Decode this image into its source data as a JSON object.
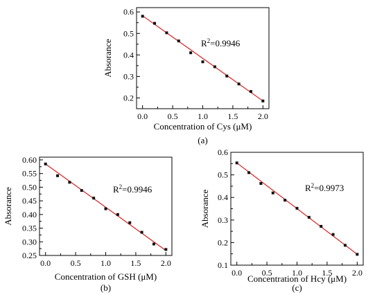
{
  "chart_data": [
    {
      "type": "scatter",
      "caption": "(a)",
      "xlabel": "Concentration of Cys (μM)",
      "ylabel": "Absorance",
      "annotation_base": "R",
      "annotation_sup": "2",
      "annotation_value": "=0.9946",
      "xlim": [
        -0.1,
        2.1
      ],
      "ylim": [
        0.15,
        0.62
      ],
      "xticks": [
        0.0,
        0.5,
        1.0,
        1.5,
        2.0
      ],
      "xtick_labels": [
        "0.0",
        "0.5",
        "1.0",
        "1.5",
        "2.0"
      ],
      "yticks": [
        0.2,
        0.3,
        0.4,
        0.5,
        0.6
      ],
      "ytick_labels": [
        "0.2",
        "0.3",
        "0.4",
        "0.5",
        "0.6"
      ],
      "x": [
        0.0,
        0.2,
        0.4,
        0.6,
        0.8,
        1.0,
        1.2,
        1.4,
        1.6,
        1.8,
        2.0
      ],
      "y": [
        0.58,
        0.547,
        0.503,
        0.465,
        0.41,
        0.368,
        0.345,
        0.302,
        0.265,
        0.23,
        0.186
      ],
      "fit": [
        [
          0.0,
          0.582
        ],
        [
          2.0,
          0.186
        ]
      ],
      "marker_color": "#111111",
      "fit_color": "#d62020"
    },
    {
      "type": "scatter",
      "caption": "(b)",
      "xlabel": "Concentration of GSH (μM)",
      "ylabel": "Absorance",
      "annotation_base": "R",
      "annotation_sup": "2",
      "annotation_value": "=0.9946",
      "xlim": [
        -0.1,
        2.1
      ],
      "ylim": [
        0.25,
        0.61
      ],
      "xticks": [
        0.0,
        0.5,
        1.0,
        1.5,
        2.0
      ],
      "xtick_labels": [
        "0.0",
        "0.5",
        "1.0",
        "1.5",
        "2.0"
      ],
      "yticks": [
        0.25,
        0.3,
        0.35,
        0.4,
        0.45,
        0.5,
        0.55,
        0.6
      ],
      "ytick_labels": [
        "0.25",
        "0.30",
        "0.35",
        "0.40",
        "0.45",
        "0.50",
        "0.55",
        "0.60"
      ],
      "x": [
        0.0,
        0.2,
        0.4,
        0.6,
        0.8,
        1.0,
        1.2,
        1.4,
        1.6,
        1.8,
        2.0
      ],
      "y": [
        0.585,
        0.542,
        0.518,
        0.488,
        0.46,
        0.421,
        0.4,
        0.37,
        0.335,
        0.292,
        0.272
      ],
      "fit": [
        [
          0.0,
          0.585
        ],
        [
          2.0,
          0.268
        ]
      ],
      "marker_color": "#111111",
      "fit_color": "#d62020"
    },
    {
      "type": "scatter",
      "caption": "(c)",
      "xlabel": "Concentration of Hcy (μM)",
      "ylabel": "Absorance",
      "annotation_base": "R",
      "annotation_sup": "2",
      "annotation_value": "=0.9973",
      "xlim": [
        -0.1,
        2.1
      ],
      "ylim": [
        0.1,
        0.6
      ],
      "xticks": [
        0.0,
        0.5,
        1.0,
        1.5,
        2.0
      ],
      "xtick_labels": [
        "0.0",
        "0.5",
        "1.0",
        "1.5",
        "2.0"
      ],
      "yticks": [
        0.1,
        0.2,
        0.3,
        0.4,
        0.5,
        0.6
      ],
      "ytick_labels": [
        "0.1",
        "0.2",
        "0.3",
        "0.4",
        "0.5",
        "0.6"
      ],
      "x": [
        0.0,
        0.2,
        0.4,
        0.6,
        0.8,
        1.0,
        1.2,
        1.4,
        1.6,
        1.8,
        2.0
      ],
      "y": [
        0.553,
        0.51,
        0.462,
        0.42,
        0.388,
        0.352,
        0.312,
        0.272,
        0.236,
        0.188,
        0.148
      ],
      "fit": [
        [
          0.0,
          0.553
        ],
        [
          2.0,
          0.148
        ]
      ],
      "marker_color": "#111111",
      "fit_color": "#d62020"
    }
  ]
}
